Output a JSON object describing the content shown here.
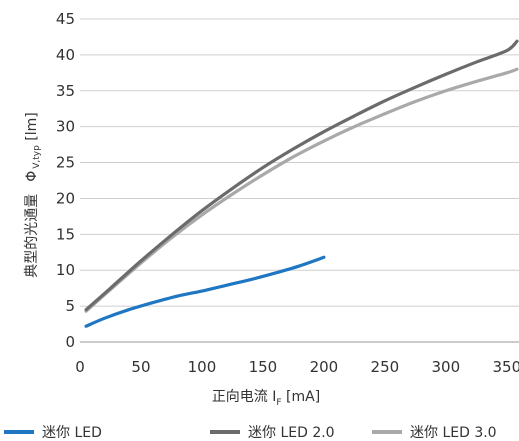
{
  "chart_data": {
    "type": "line",
    "title": "",
    "xlabel": {
      "main": "正向电流 I",
      "sub": "F",
      "unit": " [mA]"
    },
    "ylabel": {
      "prefix": "典型的光通量",
      "symbol": "Φ",
      "sub": "V,typ",
      "unit": " [lm]"
    },
    "xlim": [
      0,
      360
    ],
    "ylim": [
      0,
      45
    ],
    "x_ticks": [
      "0",
      "50",
      "100",
      "150",
      "200",
      "250",
      "300",
      "350"
    ],
    "x_tick_values": [
      0,
      50,
      100,
      150,
      200,
      250,
      300,
      350
    ],
    "y_ticks": [
      "0",
      "5",
      "10",
      "15",
      "20",
      "25",
      "30",
      "35",
      "40",
      "45"
    ],
    "y_tick_values": [
      0,
      5,
      10,
      15,
      20,
      25,
      30,
      35,
      40,
      45
    ],
    "grid": "horizontal",
    "legend_position": "bottom",
    "series": [
      {
        "name": "迷你 LED",
        "color": "#1f77c4",
        "x": [
          5,
          20,
          40,
          60,
          80,
          100,
          120,
          140,
          160,
          180,
          200
        ],
        "y": [
          2.2,
          3.3,
          4.5,
          5.5,
          6.4,
          7.1,
          7.9,
          8.7,
          9.6,
          10.6,
          11.8
        ]
      },
      {
        "name": "迷你 LED 2.0",
        "color": "#6b6b6b",
        "x": [
          5,
          25,
          50,
          75,
          100,
          125,
          150,
          175,
          200,
          225,
          250,
          275,
          300,
          325,
          350,
          365
        ],
        "y": [
          4.5,
          7.5,
          11.3,
          14.9,
          18.3,
          21.4,
          24.3,
          26.9,
          29.3,
          31.5,
          33.6,
          35.5,
          37.3,
          39.0,
          40.6,
          41.9
        ]
      },
      {
        "name": "迷你 LED 3.0",
        "color": "#a9a9a9",
        "x": [
          5,
          25,
          50,
          75,
          100,
          125,
          150,
          175,
          200,
          225,
          250,
          275,
          300,
          325,
          350,
          365
        ],
        "y": [
          4.3,
          7.3,
          11.0,
          14.5,
          17.7,
          20.6,
          23.3,
          25.8,
          28.0,
          30.0,
          31.8,
          33.5,
          35.0,
          36.3,
          37.5,
          38.0
        ]
      }
    ]
  }
}
